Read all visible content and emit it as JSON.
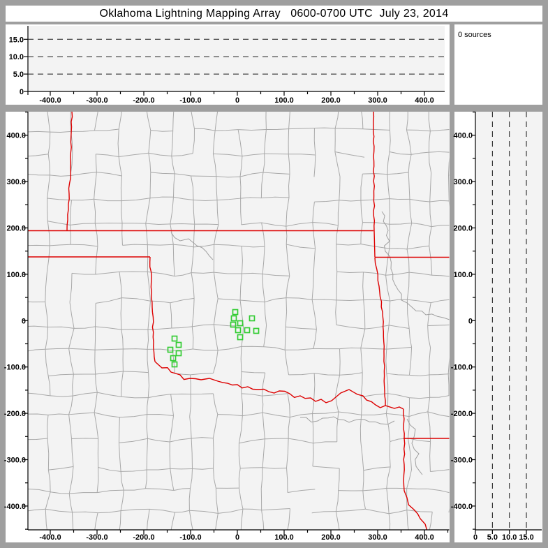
{
  "title": "Oklahoma Lightning Mapping Array   0600-0700 UTC  July 23, 2014",
  "sources_panel": {
    "label": "0 sources",
    "count": 0
  },
  "colors": {
    "frame": "#9f9f9f",
    "panel_bg": "#ffffff",
    "plot_bg": "#f3f3f3",
    "county": "#a8a8a8",
    "river": "#a0a0a0",
    "state_border": "#dd0000",
    "station": "#33cc33",
    "axis": "#000000",
    "dash": "#1a1a1a",
    "text": "#000000"
  },
  "distance_tick_labels": [
    {
      "v": -400,
      "label": "-400.0"
    },
    {
      "v": -300,
      "label": "-300.0"
    },
    {
      "v": -200,
      "label": "-200.0"
    },
    {
      "v": -100,
      "label": "-100.0"
    },
    {
      "v": 0,
      "label": "0"
    },
    {
      "v": 100,
      "label": "100.0"
    },
    {
      "v": 200,
      "label": "200.0"
    },
    {
      "v": 300,
      "label": "300.0"
    },
    {
      "v": 400,
      "label": "400.0"
    }
  ],
  "altitude_tick_labels": [
    {
      "v": 0,
      "label": "0"
    },
    {
      "v": 5,
      "label": "5.0"
    },
    {
      "v": 10,
      "label": "10.0"
    },
    {
      "v": 15,
      "label": "15.0"
    }
  ],
  "minor_tick_step_km": 50,
  "chart_data": [
    {
      "id": "alt-vs-east-west",
      "type": "scatter",
      "points": [],
      "xlim": [
        -448,
        454
      ],
      "ylim": [
        0,
        19
      ],
      "gridlines_alt_km": [
        5,
        10,
        15
      ]
    },
    {
      "id": "source-counter",
      "type": "table",
      "label": "0 sources",
      "count": 0
    },
    {
      "id": "plan-view-map",
      "type": "scatter",
      "xlim": [
        -448,
        454
      ],
      "ylim": [
        -452,
        451
      ],
      "stations_km": [
        [
          -4.5,
          18.5
        ],
        [
          -7.5,
          5.0
        ],
        [
          31.3,
          5.0
        ],
        [
          6.0,
          -5.6
        ],
        [
          -9.0,
          -8.6
        ],
        [
          1.5,
          -20.6
        ],
        [
          20.9,
          -20.6
        ],
        [
          40.3,
          -22.1
        ],
        [
          6.0,
          -35.7
        ],
        [
          -134.3,
          -38.7
        ],
        [
          -125.4,
          -52.3
        ],
        [
          -143.3,
          -62.8
        ],
        [
          -125.4,
          -70.3
        ],
        [
          -137.3,
          -80.9
        ],
        [
          -134.3,
          -94.4
        ]
      ],
      "state_borders_km": [
        {
          "name": "co-ks-line",
          "wiggle": 0.5,
          "pts": [
            [
              -353.7,
              450.8
            ],
            [
              -356.7,
              330.3
            ],
            [
              -361.2,
              239.9
            ],
            [
              -364.2,
              194.0
            ]
          ]
        },
        {
          "name": "kansas-oklahoma-37n",
          "wiggle": 0,
          "pts": [
            [
              -448.0,
              194.0
            ],
            [
              291.0,
              194.0
            ]
          ]
        },
        {
          "name": "ks-mo-line",
          "wiggle": 0.4,
          "pts": [
            [
              291.0,
              450.8
            ],
            [
              292.5,
              194.0
            ]
          ]
        },
        {
          "name": "mo-ar-west",
          "wiggle": 0,
          "pts": [
            [
              292.5,
              194.0
            ],
            [
              294.0,
              136.7
            ]
          ]
        },
        {
          "name": "mo-ar-36-5n",
          "wiggle": 0,
          "pts": [
            [
              294.0,
              136.7
            ],
            [
              454.0,
              136.7
            ]
          ]
        },
        {
          "name": "tx-panhandle-north-36-5n",
          "wiggle": 0,
          "pts": [
            [
              -448.0,
              137.5
            ],
            [
              -186.6,
              137.5
            ]
          ]
        },
        {
          "name": "ok-tx-100w",
          "wiggle": 0.5,
          "pts": [
            [
              -186.6,
              137.5
            ],
            [
              -182.1,
              29.1
            ],
            [
              -179.1,
              -46.2
            ],
            [
              -176.1,
              -88.4
            ]
          ]
        },
        {
          "name": "ok-ar-line",
          "wiggle": 0.4,
          "pts": [
            [
              294.0,
              136.0
            ],
            [
              303.0,
              74.2
            ],
            [
              310.4,
              18.5
            ],
            [
              313.4,
              -65.8
            ],
            [
              314.9,
              -151.7
            ],
            [
              316.4,
              -183.3
            ]
          ]
        },
        {
          "name": "red-river-ok-tx",
          "wiggle": 2.2,
          "pts": [
            [
              -176.1,
              -88.4
            ],
            [
              -161.2,
              -102.0
            ],
            [
              -141.8,
              -111.0
            ],
            [
              -122.4,
              -117.0
            ],
            [
              -101.5,
              -124.5
            ],
            [
              -77.6,
              -127.6
            ],
            [
              -59.7,
              -124.5
            ],
            [
              -41.8,
              -130.6
            ],
            [
              -20.9,
              -135.1
            ],
            [
              0.0,
              -138.1
            ],
            [
              22.4,
              -142.6
            ],
            [
              44.8,
              -148.6
            ],
            [
              67.2,
              -153.2
            ],
            [
              89.6,
              -151.7
            ],
            [
              111.9,
              -157.7
            ],
            [
              134.3,
              -162.2
            ],
            [
              156.7,
              -166.7
            ],
            [
              179.1,
              -169.7
            ],
            [
              201.5,
              -172.7
            ],
            [
              220.9,
              -156.2
            ],
            [
              238.8,
              -148.6
            ],
            [
              256.7,
              -159.2
            ],
            [
              276.1,
              -171.2
            ],
            [
              295.5,
              -181.8
            ],
            [
              316.4,
              -183.3
            ],
            [
              335.8,
              -189.3
            ],
            [
              346.3,
              -186.3
            ],
            [
              355.2,
              -190.8
            ]
          ]
        },
        {
          "name": "tx-ar-line",
          "wiggle": 0.4,
          "pts": [
            [
              355.2,
              -190.8
            ],
            [
              356.7,
              -254.1
            ],
            [
              356.7,
              -367.0
            ]
          ]
        },
        {
          "name": "ar-la-33n",
          "wiggle": 0,
          "pts": [
            [
              355.2,
              -254.1
            ],
            [
              454.0,
              -254.1
            ]
          ]
        },
        {
          "name": "tx-la-line",
          "wiggle": 1.6,
          "pts": [
            [
              356.7,
              -367.0
            ],
            [
              362.7,
              -382.1
            ],
            [
              377.6,
              -407.7
            ],
            [
              391.0,
              -427.3
            ],
            [
              406.0,
              -454.4
            ]
          ]
        }
      ],
      "rivers_km": [
        {
          "name": "river-east",
          "wiggle": 2.0,
          "pts": [
            [
              309.0,
              235.4
            ],
            [
              322.4,
              194.7
            ],
            [
              316.4,
              149.5
            ],
            [
              328.4,
              111.9
            ],
            [
              337.3,
              77.3
            ],
            [
              350.7,
              44.1
            ],
            [
              373.1,
              29.1
            ],
            [
              403.0,
              12.5
            ],
            [
              440.3,
              6.5
            ],
            [
              453.7,
              2.0
            ]
          ]
        },
        {
          "name": "river-north-central",
          "wiggle": 1.8,
          "pts": [
            [
              -141.8,
              190.2
            ],
            [
              -122.4,
              172.1
            ],
            [
              -104.5,
              176.7
            ],
            [
              -86.6,
              161.6
            ],
            [
              -67.2,
              149.5
            ],
            [
              -52.2,
              131.5
            ]
          ]
        },
        {
          "name": "river-southeast",
          "wiggle": 1.8,
          "pts": [
            [
              362.7,
              -211.9
            ],
            [
              380.6,
              -234.5
            ],
            [
              373.1,
              -264.6
            ],
            [
              388.1,
              -287.2
            ],
            [
              382.1,
              -314.3
            ],
            [
              395.5,
              -332.4
            ]
          ]
        },
        {
          "name": "river-south",
          "wiggle": 1.8,
          "pts": [
            [
              134.3,
              -208.9
            ],
            [
              171.6,
              -216.4
            ],
            [
              206.0,
              -207.4
            ],
            [
              238.8,
              -219.4
            ],
            [
              271.6,
              -213.4
            ],
            [
              306.0,
              -222.4
            ],
            [
              335.8,
              -216.4
            ]
          ]
        }
      ]
    },
    {
      "id": "alt-vs-north-south",
      "type": "scatter",
      "points": [],
      "xlim": [
        0,
        19.3
      ],
      "ylim": [
        -452,
        451
      ],
      "gridlines_alt_km": [
        5,
        10,
        15
      ]
    }
  ],
  "county_grid": {
    "seed": 11,
    "cell_min": 27,
    "cell_max": 41,
    "edge_prob": 0.8,
    "jitter": 4
  }
}
